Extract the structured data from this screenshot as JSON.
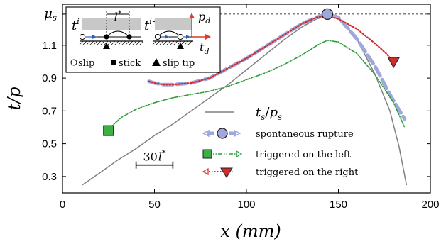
{
  "chart_data": {
    "type": "line",
    "xlabel": "x (mm)",
    "ylabel": "t/p",
    "xlim": [
      0,
      200
    ],
    "ylim": [
      0.2,
      1.35
    ],
    "xticks": [
      "0",
      "50",
      "100",
      "150",
      "200"
    ],
    "yticks": [
      {
        "value": 0.3,
        "label": "0.3"
      },
      {
        "value": 0.5,
        "label": "0.5"
      },
      {
        "value": 0.7,
        "label": "0.7"
      },
      {
        "value": 0.9,
        "label": "0.9"
      },
      {
        "value": 1.1,
        "label": "1.1"
      },
      {
        "value": 1.29,
        "label": "μs"
      }
    ],
    "mu_s": 1.29,
    "grid": false,
    "legend_placement": "bottom-right",
    "series": [
      {
        "name": "ts/ps",
        "label_main": "t",
        "label_sub1": "s",
        "label_slash": "/",
        "label_den": "p",
        "label_sub2": "s",
        "color": "#808080",
        "style": "solid",
        "x": [
          11,
          20,
          30,
          40,
          50,
          60,
          70,
          80,
          90,
          100,
          110,
          120,
          130,
          138,
          145,
          150,
          160,
          170,
          178,
          183,
          187
        ],
        "y": [
          0.25,
          0.32,
          0.4,
          0.47,
          0.55,
          0.62,
          0.7,
          0.78,
          0.86,
          0.95,
          1.04,
          1.13,
          1.21,
          1.26,
          1.28,
          1.26,
          1.14,
          0.92,
          0.7,
          0.48,
          0.25
        ]
      },
      {
        "name": "spontaneous rupture",
        "color": "#9fa8dc",
        "style": "dashed",
        "marker": "circle",
        "marker_x": 144,
        "marker_y": 1.29,
        "x": [
          47,
          50,
          55,
          60,
          70,
          80,
          90,
          100,
          110,
          120,
          130,
          138,
          144,
          150,
          160,
          170,
          178,
          186
        ],
        "y": [
          0.88,
          0.87,
          0.86,
          0.86,
          0.87,
          0.9,
          0.96,
          1.02,
          1.09,
          1.16,
          1.23,
          1.27,
          1.29,
          1.27,
          1.14,
          0.97,
          0.8,
          0.65
        ]
      },
      {
        "name": "triggered on the left",
        "color": "#2e9e3a",
        "style": "dash-dot",
        "marker": "square",
        "marker_x": 25,
        "marker_y": 0.58,
        "x": [
          25,
          28,
          32,
          40,
          50,
          60,
          70,
          80,
          90,
          100,
          110,
          120,
          130,
          140,
          144,
          150,
          160,
          170,
          180,
          186
        ],
        "y": [
          0.58,
          0.62,
          0.66,
          0.71,
          0.75,
          0.78,
          0.8,
          0.82,
          0.85,
          0.89,
          0.93,
          0.98,
          1.04,
          1.11,
          1.13,
          1.12,
          1.05,
          0.92,
          0.75,
          0.6
        ]
      },
      {
        "name": "triggered on the right",
        "color": "#d42a2a",
        "style": "dotted",
        "marker": "triangle-down",
        "marker_x": 180,
        "marker_y": 1.0,
        "x": [
          47,
          50,
          55,
          60,
          70,
          80,
          90,
          100,
          110,
          120,
          130,
          138,
          144,
          150,
          160,
          170,
          176,
          180
        ],
        "y": [
          0.88,
          0.87,
          0.86,
          0.86,
          0.87,
          0.9,
          0.96,
          1.02,
          1.09,
          1.16,
          1.23,
          1.27,
          1.28,
          1.26,
          1.2,
          1.11,
          1.05,
          1.0
        ]
      }
    ],
    "annotations": {
      "scale_bar": {
        "label_num": "30",
        "label_sym": "l",
        "label_sup": "*",
        "x_start": 40,
        "x_end": 60,
        "y": 0.37
      }
    },
    "inset": {
      "left_time": "t",
      "left_time_sup": "i",
      "right_time": "t",
      "right_time_sup": "i+1",
      "length_label": "l",
      "length_sup": "*",
      "p_label": "p",
      "p_sub": "d",
      "t_label": "t",
      "t_sub": "d",
      "legend_slip": "slip",
      "legend_stick": "stick",
      "legend_slip_tip": "slip tip"
    }
  }
}
